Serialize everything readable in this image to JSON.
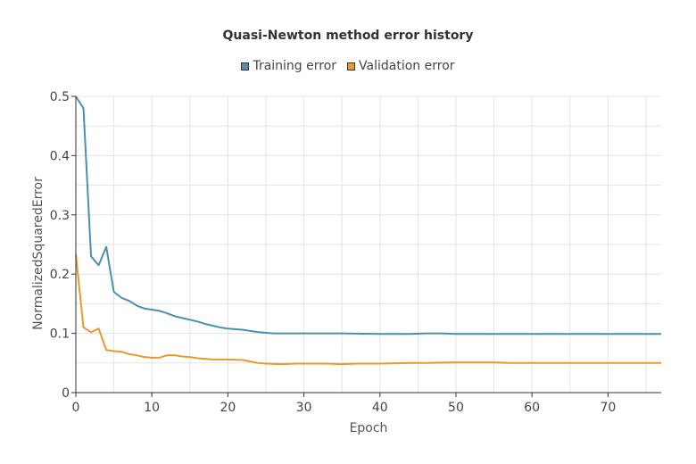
{
  "chart_data": {
    "type": "line",
    "title": "Quasi-Newton method error history",
    "xlabel": "Epoch",
    "ylabel": "NormalizedSquaredError",
    "xlim": [
      0,
      77
    ],
    "ylim": [
      0,
      0.5
    ],
    "x_ticks": [
      0,
      10,
      20,
      30,
      40,
      50,
      60,
      70
    ],
    "y_ticks": [
      0,
      0.1,
      0.2,
      0.3,
      0.4,
      0.5
    ],
    "x_tick_labels": [
      "0",
      "10",
      "20",
      "30",
      "40",
      "50",
      "60",
      "70"
    ],
    "y_tick_labels": [
      "0",
      "0.1",
      "0.2",
      "0.3",
      "0.4",
      "0.5"
    ],
    "grid": true,
    "legend_position": "top-center",
    "series": [
      {
        "name": "Training error",
        "color": "#4d8fb1",
        "points": [
          [
            0,
            0.5
          ],
          [
            1,
            0.48
          ],
          [
            2,
            0.23
          ],
          [
            3,
            0.215
          ],
          [
            4,
            0.246
          ],
          [
            5,
            0.17
          ],
          [
            6,
            0.16
          ],
          [
            7,
            0.155
          ],
          [
            8,
            0.147
          ],
          [
            9,
            0.142
          ],
          [
            10,
            0.14
          ],
          [
            11,
            0.138
          ],
          [
            12,
            0.134
          ],
          [
            13,
            0.129
          ],
          [
            14,
            0.126
          ],
          [
            15,
            0.123
          ],
          [
            16,
            0.12
          ],
          [
            17,
            0.116
          ],
          [
            18,
            0.113
          ],
          [
            19,
            0.11
          ],
          [
            20,
            0.108
          ],
          [
            22,
            0.106
          ],
          [
            24,
            0.102
          ],
          [
            26,
            0.1
          ],
          [
            30,
            0.1
          ],
          [
            35,
            0.1
          ],
          [
            40,
            0.099
          ],
          [
            44,
            0.099
          ],
          [
            46,
            0.1
          ],
          [
            48,
            0.1
          ],
          [
            50,
            0.099
          ],
          [
            55,
            0.099
          ],
          [
            60,
            0.099
          ],
          [
            65,
            0.099
          ],
          [
            70,
            0.099
          ],
          [
            77,
            0.099
          ]
        ]
      },
      {
        "name": "Validation error",
        "color": "#e89a2c",
        "points": [
          [
            0,
            0.233
          ],
          [
            1,
            0.11
          ],
          [
            2,
            0.102
          ],
          [
            3,
            0.108
          ],
          [
            4,
            0.072
          ],
          [
            5,
            0.07
          ],
          [
            6,
            0.069
          ],
          [
            7,
            0.065
          ],
          [
            8,
            0.063
          ],
          [
            9,
            0.06
          ],
          [
            10,
            0.059
          ],
          [
            11,
            0.059
          ],
          [
            12,
            0.063
          ],
          [
            13,
            0.063
          ],
          [
            14,
            0.061
          ],
          [
            15,
            0.06
          ],
          [
            16,
            0.058
          ],
          [
            17,
            0.057
          ],
          [
            18,
            0.056
          ],
          [
            20,
            0.056
          ],
          [
            22,
            0.055
          ],
          [
            24,
            0.05
          ],
          [
            25,
            0.049
          ],
          [
            27,
            0.048
          ],
          [
            29,
            0.049
          ],
          [
            30,
            0.049
          ],
          [
            33,
            0.049
          ],
          [
            35,
            0.048
          ],
          [
            37,
            0.049
          ],
          [
            40,
            0.049
          ],
          [
            44,
            0.05
          ],
          [
            46,
            0.05
          ],
          [
            50,
            0.051
          ],
          [
            55,
            0.051
          ],
          [
            57,
            0.05
          ],
          [
            60,
            0.05
          ],
          [
            65,
            0.05
          ],
          [
            70,
            0.05
          ],
          [
            77,
            0.05
          ]
        ]
      }
    ]
  }
}
